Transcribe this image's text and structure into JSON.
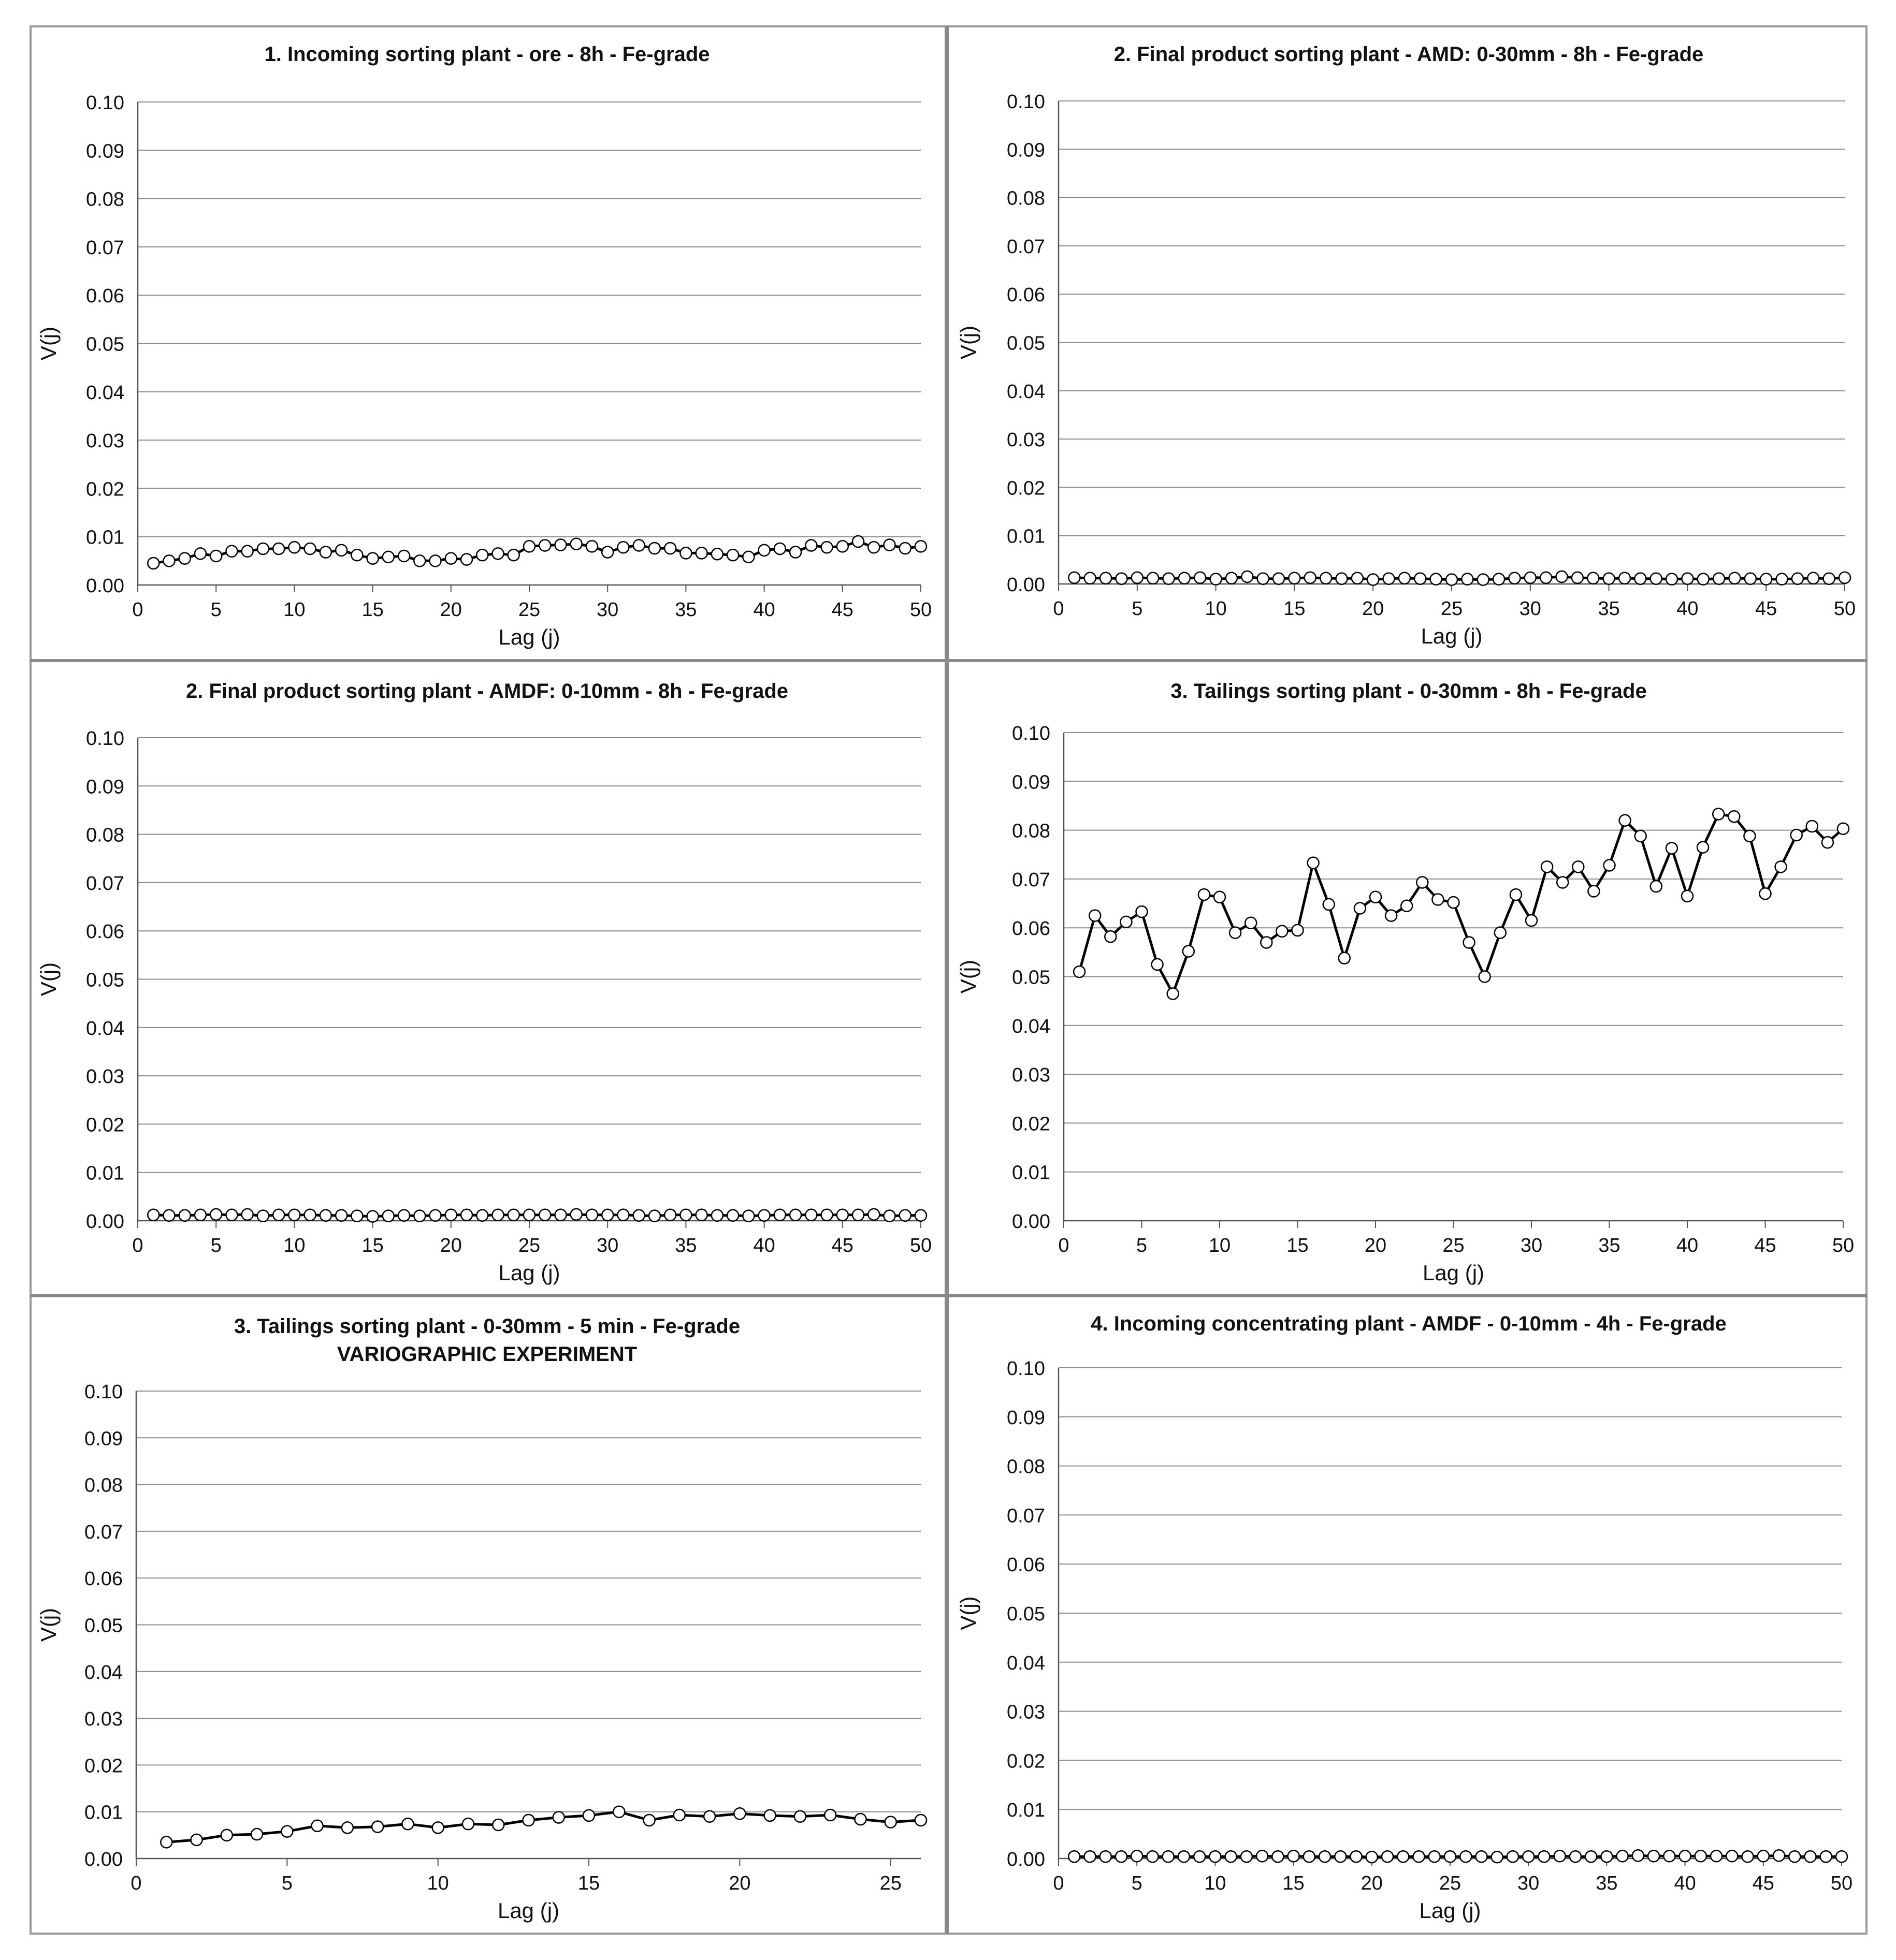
{
  "chart_data": [
    {
      "type": "line",
      "title": "1. Incoming sorting plant - ore - 8h - Fe-grade",
      "subtitle": "",
      "xlabel": "Lag (j)",
      "ylabel": "V(j)",
      "xlim": [
        0,
        50
      ],
      "ylim": [
        0,
        0.1
      ],
      "xticks": [
        "0",
        "5",
        "10",
        "15",
        "20",
        "25",
        "30",
        "35",
        "40",
        "45",
        "50"
      ],
      "yticks": [
        "0.00",
        "0.01",
        "0.02",
        "0.03",
        "0.04",
        "0.05",
        "0.06",
        "0.07",
        "0.08",
        "0.09",
        "0.10"
      ],
      "grid": true,
      "legend": "none",
      "x": [
        1,
        2,
        3,
        4,
        5,
        6,
        7,
        8,
        9,
        10,
        11,
        12,
        13,
        14,
        15,
        16,
        17,
        18,
        19,
        20,
        21,
        22,
        23,
        24,
        25,
        26,
        27,
        28,
        29,
        30,
        31,
        32,
        33,
        34,
        35,
        36,
        37,
        38,
        39,
        40,
        41,
        42,
        43,
        44,
        45,
        46,
        47,
        48,
        49,
        50
      ],
      "y": [
        0.0045,
        0.005,
        0.0055,
        0.0065,
        0.006,
        0.007,
        0.007,
        0.0075,
        0.0075,
        0.0078,
        0.0075,
        0.0068,
        0.0072,
        0.0062,
        0.0055,
        0.0058,
        0.006,
        0.005,
        0.005,
        0.0055,
        0.0053,
        0.0062,
        0.0065,
        0.0062,
        0.008,
        0.0082,
        0.0083,
        0.0085,
        0.008,
        0.0068,
        0.0078,
        0.0082,
        0.0076,
        0.0076,
        0.0066,
        0.0066,
        0.0064,
        0.0062,
        0.0058,
        0.0072,
        0.0075,
        0.0068,
        0.0082,
        0.0078,
        0.008,
        0.009,
        0.0078,
        0.0083,
        0.0076,
        0.008
      ]
    },
    {
      "type": "line",
      "title": "2. Final product sorting plant - AMD: 0-30mm - 8h - Fe-grade",
      "subtitle": "",
      "xlabel": "Lag (j)",
      "ylabel": "V(j)",
      "xlim": [
        0,
        50
      ],
      "ylim": [
        0,
        0.1
      ],
      "xticks": [
        "0",
        "5",
        "10",
        "15",
        "20",
        "25",
        "30",
        "35",
        "40",
        "45",
        "50"
      ],
      "yticks": [
        "0.00",
        "0.01",
        "0.02",
        "0.03",
        "0.04",
        "0.05",
        "0.06",
        "0.07",
        "0.08",
        "0.09",
        "0.10"
      ],
      "grid": true,
      "legend": "none",
      "x": [
        1,
        2,
        3,
        4,
        5,
        6,
        7,
        8,
        9,
        10,
        11,
        12,
        13,
        14,
        15,
        16,
        17,
        18,
        19,
        20,
        21,
        22,
        23,
        24,
        25,
        26,
        27,
        28,
        29,
        30,
        31,
        32,
        33,
        34,
        35,
        36,
        37,
        38,
        39,
        40,
        41,
        42,
        43,
        44,
        45,
        46,
        47,
        48,
        49,
        50
      ],
      "y": [
        0.0013,
        0.0012,
        0.0012,
        0.0011,
        0.0013,
        0.0012,
        0.0011,
        0.0012,
        0.0013,
        0.001,
        0.0012,
        0.0015,
        0.0011,
        0.0011,
        0.0012,
        0.0013,
        0.0012,
        0.0011,
        0.0012,
        0.0009,
        0.0011,
        0.0012,
        0.0011,
        0.001,
        0.0009,
        0.001,
        0.0009,
        0.001,
        0.0012,
        0.0013,
        0.0013,
        0.0015,
        0.0013,
        0.0012,
        0.0011,
        0.0012,
        0.0011,
        0.0011,
        0.001,
        0.0011,
        0.001,
        0.0011,
        0.0012,
        0.0011,
        0.001,
        0.001,
        0.0011,
        0.0012,
        0.0011,
        0.0013
      ]
    },
    {
      "type": "line",
      "title": "2. Final product sorting plant - AMDF: 0-10mm - 8h - Fe-grade",
      "subtitle": "",
      "xlabel": "Lag (j)",
      "ylabel": "V(j)",
      "xlim": [
        0,
        50
      ],
      "ylim": [
        0,
        0.1
      ],
      "xticks": [
        "0",
        "5",
        "10",
        "15",
        "20",
        "25",
        "30",
        "35",
        "40",
        "45",
        "50"
      ],
      "yticks": [
        "0.00",
        "0.01",
        "0.02",
        "0.03",
        "0.04",
        "0.05",
        "0.06",
        "0.07",
        "0.08",
        "0.09",
        "0.10"
      ],
      "grid": true,
      "legend": "none",
      "x": [
        1,
        2,
        3,
        4,
        5,
        6,
        7,
        8,
        9,
        10,
        11,
        12,
        13,
        14,
        15,
        16,
        17,
        18,
        19,
        20,
        21,
        22,
        23,
        24,
        25,
        26,
        27,
        28,
        29,
        30,
        31,
        32,
        33,
        34,
        35,
        36,
        37,
        38,
        39,
        40,
        41,
        42,
        43,
        44,
        45,
        46,
        47,
        48,
        49,
        50
      ],
      "y": [
        0.0012,
        0.0011,
        0.0011,
        0.0012,
        0.0013,
        0.0012,
        0.0013,
        0.001,
        0.0012,
        0.0012,
        0.0012,
        0.0011,
        0.0011,
        0.001,
        0.0009,
        0.001,
        0.0011,
        0.001,
        0.0011,
        0.0012,
        0.0012,
        0.0011,
        0.0012,
        0.0012,
        0.0012,
        0.0012,
        0.0012,
        0.0013,
        0.0012,
        0.0012,
        0.0012,
        0.0011,
        0.001,
        0.0012,
        0.0012,
        0.0012,
        0.0011,
        0.0011,
        0.001,
        0.0011,
        0.0012,
        0.0012,
        0.0012,
        0.0012,
        0.0012,
        0.0012,
        0.0013,
        0.001,
        0.0011,
        0.0011
      ]
    },
    {
      "type": "line",
      "title": "3. Tailings sorting plant - 0-30mm - 8h - Fe-grade",
      "subtitle": "",
      "xlabel": "Lag (j)",
      "ylabel": "V(j)",
      "xlim": [
        0,
        50
      ],
      "ylim": [
        0,
        0.1
      ],
      "xticks": [
        "0",
        "5",
        "10",
        "15",
        "20",
        "25",
        "30",
        "35",
        "40",
        "45",
        "50"
      ],
      "yticks": [
        "0.00",
        "0.01",
        "0.02",
        "0.03",
        "0.04",
        "0.05",
        "0.06",
        "0.07",
        "0.08",
        "0.09",
        "0.10"
      ],
      "grid": true,
      "legend": "none",
      "x": [
        1,
        2,
        3,
        4,
        5,
        6,
        7,
        8,
        9,
        10,
        11,
        12,
        13,
        14,
        15,
        16,
        17,
        18,
        19,
        20,
        21,
        22,
        23,
        24,
        25,
        26,
        27,
        28,
        29,
        30,
        31,
        32,
        33,
        34,
        35,
        36,
        37,
        38,
        39,
        40,
        41,
        42,
        43,
        44,
        45,
        46,
        47,
        48,
        49,
        50
      ],
      "y": [
        0.051,
        0.0625,
        0.0582,
        0.0612,
        0.0633,
        0.0525,
        0.0465,
        0.0552,
        0.0668,
        0.0663,
        0.059,
        0.061,
        0.057,
        0.0593,
        0.0595,
        0.0733,
        0.0648,
        0.0538,
        0.064,
        0.0663,
        0.0625,
        0.0645,
        0.0693,
        0.0658,
        0.0652,
        0.057,
        0.05,
        0.059,
        0.0668,
        0.0615,
        0.0725,
        0.0693,
        0.0725,
        0.0675,
        0.0728,
        0.082,
        0.0788,
        0.0685,
        0.0763,
        0.0665,
        0.0765,
        0.0833,
        0.0828,
        0.0788,
        0.067,
        0.0725,
        0.079,
        0.0808,
        0.0775,
        0.0803
      ]
    },
    {
      "type": "line",
      "title": "3. Tailings sorting plant - 0-30mm - 5 min - Fe-grade",
      "subtitle": "VARIOGRAPHIC EXPERIMENT",
      "xlabel": "Lag (j)",
      "ylabel": "V(j)",
      "xlim": [
        0,
        26
      ],
      "ylim": [
        0,
        0.1
      ],
      "xticks": [
        "0",
        "5",
        "10",
        "15",
        "20",
        "25"
      ],
      "yticks": [
        "0.00",
        "0.01",
        "0.02",
        "0.03",
        "0.04",
        "0.05",
        "0.06",
        "0.07",
        "0.08",
        "0.09",
        "0.10"
      ],
      "grid": true,
      "legend": "none",
      "x": [
        1,
        2,
        3,
        4,
        5,
        6,
        7,
        8,
        9,
        10,
        11,
        12,
        13,
        14,
        15,
        16,
        17,
        18,
        19,
        20,
        21,
        22,
        23,
        24,
        25,
        26
      ],
      "y": [
        0.0035,
        0.004,
        0.005,
        0.0052,
        0.0058,
        0.007,
        0.0066,
        0.0068,
        0.0074,
        0.0066,
        0.0074,
        0.0072,
        0.0082,
        0.0088,
        0.0092,
        0.01,
        0.0082,
        0.0093,
        0.009,
        0.0096,
        0.0092,
        0.009,
        0.0093,
        0.0084,
        0.0078,
        0.0082
      ]
    },
    {
      "type": "line",
      "title": "4. Incoming concentrating plant - AMDF - 0-10mm - 4h - Fe-grade",
      "subtitle": "",
      "xlabel": "Lag (j)",
      "ylabel": "V(j)",
      "xlim": [
        0,
        50
      ],
      "ylim": [
        0,
        0.1
      ],
      "xticks": [
        "0",
        "5",
        "10",
        "15",
        "20",
        "25",
        "30",
        "35",
        "40",
        "45",
        "50"
      ],
      "yticks": [
        "0.00",
        "0.01",
        "0.02",
        "0.03",
        "0.04",
        "0.05",
        "0.06",
        "0.07",
        "0.08",
        "0.09",
        "0.10"
      ],
      "grid": true,
      "legend": "none",
      "x": [
        1,
        2,
        3,
        4,
        5,
        6,
        7,
        8,
        9,
        10,
        11,
        12,
        13,
        14,
        15,
        16,
        17,
        18,
        19,
        20,
        21,
        22,
        23,
        24,
        25,
        26,
        27,
        28,
        29,
        30,
        31,
        32,
        33,
        34,
        35,
        36,
        37,
        38,
        39,
        40,
        41,
        42,
        43,
        44,
        45,
        46,
        47,
        48,
        49,
        50
      ],
      "y": [
        0.0004,
        0.0004,
        0.0004,
        0.0004,
        0.0005,
        0.0004,
        0.0004,
        0.0004,
        0.0004,
        0.0004,
        0.0004,
        0.0004,
        0.0005,
        0.0004,
        0.0005,
        0.0004,
        0.0004,
        0.0004,
        0.0004,
        0.0003,
        0.0004,
        0.0004,
        0.0004,
        0.0004,
        0.0004,
        0.0004,
        0.0004,
        0.0003,
        0.0004,
        0.0004,
        0.0004,
        0.0005,
        0.0004,
        0.0004,
        0.0004,
        0.0005,
        0.0006,
        0.0005,
        0.0005,
        0.0005,
        0.0005,
        0.0005,
        0.0005,
        0.0004,
        0.0005,
        0.0006,
        0.0004,
        0.0004,
        0.0004,
        0.0004
      ]
    }
  ]
}
